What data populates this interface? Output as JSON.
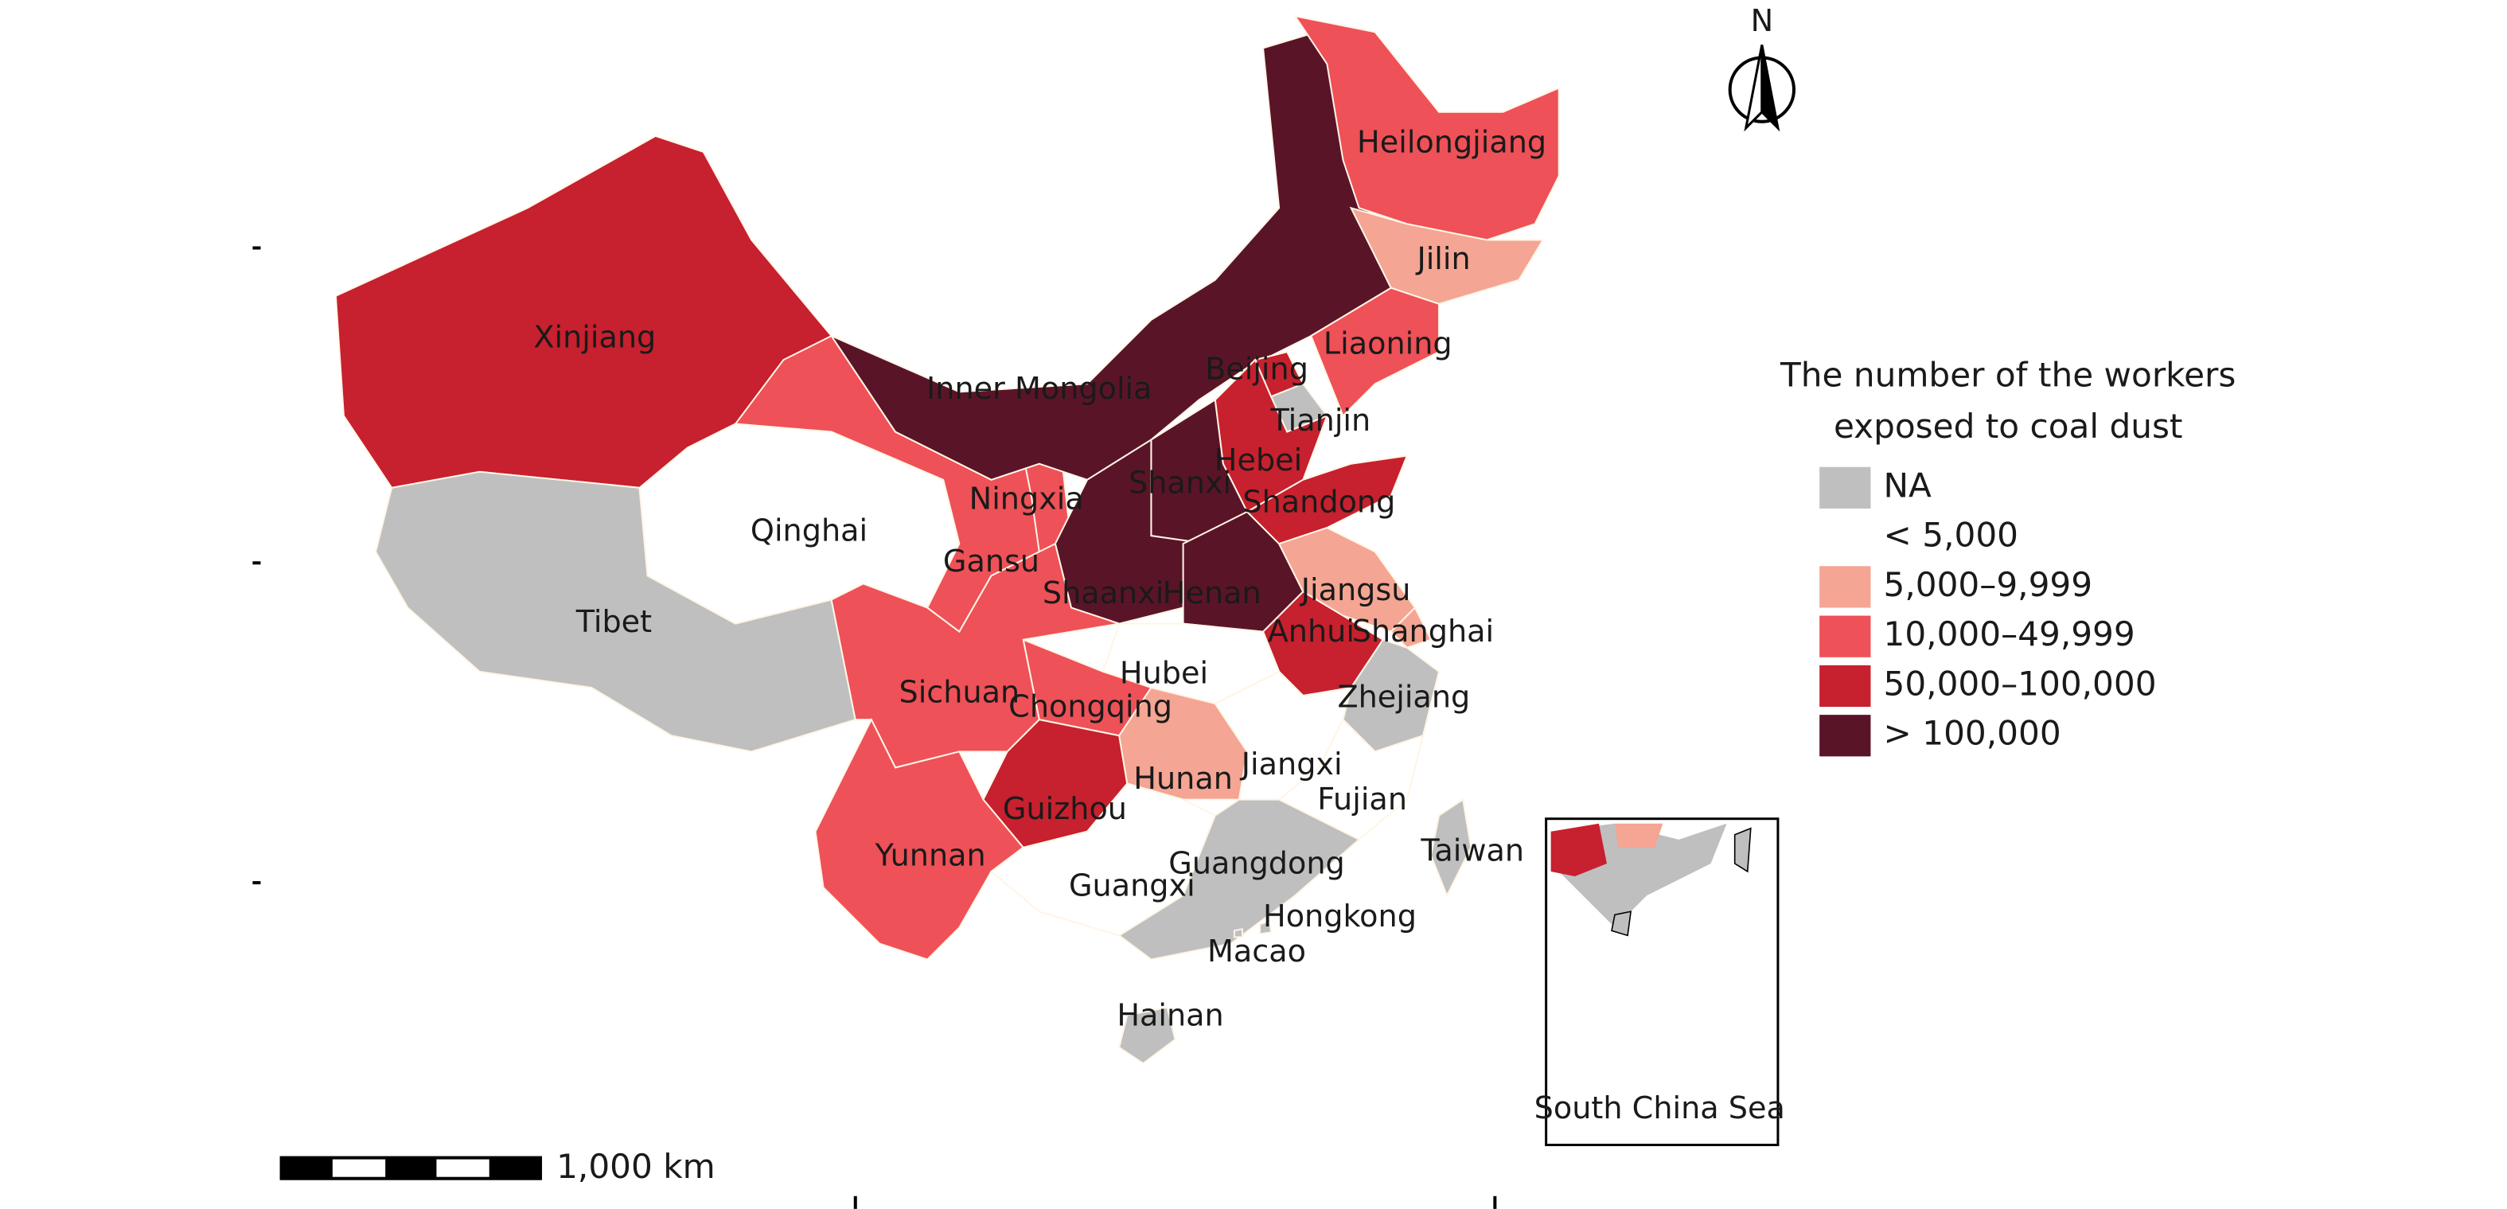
{
  "map": {
    "legend": {
      "title_lines": [
        "The number of the workers",
        "exposed to coal dust"
      ],
      "items": [
        {
          "label": "NA",
          "color": "#bfbfbf"
        },
        {
          "label": "< 5,000",
          "color": "#ffffff"
        },
        {
          "label": "5,000–9,999",
          "color": "#f4a593"
        },
        {
          "label": "10,000–49,999",
          "color": "#ee5157"
        },
        {
          "label": "50,000–100,000",
          "color": "#c7202e"
        },
        {
          "label": "> 100,000",
          "color": "#5a1428"
        }
      ]
    },
    "provinces": [
      {
        "name": "Xinjiang",
        "category": 4
      },
      {
        "name": "Tibet",
        "category": 0
      },
      {
        "name": "Qinghai",
        "category": 1
      },
      {
        "name": "Gansu",
        "category": 3
      },
      {
        "name": "Ningxia",
        "category": 3
      },
      {
        "name": "Inner Mongolia",
        "category": 5
      },
      {
        "name": "Heilongjiang",
        "category": 3
      },
      {
        "name": "Jilin",
        "category": 2
      },
      {
        "name": "Liaoning",
        "category": 3
      },
      {
        "name": "Beijing",
        "category": 4
      },
      {
        "name": "Tianjin",
        "category": 0
      },
      {
        "name": "Hebei",
        "category": 4
      },
      {
        "name": "Shanxi",
        "category": 5
      },
      {
        "name": "Shaanxi",
        "category": 5
      },
      {
        "name": "Henan",
        "category": 5
      },
      {
        "name": "Shandong",
        "category": 4
      },
      {
        "name": "Jiangsu",
        "category": 2
      },
      {
        "name": "Shanghai",
        "category": 2
      },
      {
        "name": "Anhui",
        "category": 4
      },
      {
        "name": "Zhejiang",
        "category": 0
      },
      {
        "name": "Hubei",
        "category": 1
      },
      {
        "name": "Chongqing",
        "category": 3
      },
      {
        "name": "Sichuan",
        "category": 3
      },
      {
        "name": "Guizhou",
        "category": 4
      },
      {
        "name": "Hunan",
        "category": 2
      },
      {
        "name": "Jiangxi",
        "category": 1
      },
      {
        "name": "Fujian",
        "category": 1
      },
      {
        "name": "Yunnan",
        "category": 3
      },
      {
        "name": "Guangxi",
        "category": 1
      },
      {
        "name": "Guangdong",
        "category": 0
      },
      {
        "name": "Taiwan",
        "category": 0
      },
      {
        "name": "Hainan",
        "category": 0
      },
      {
        "name": "Hongkong",
        "category": 0
      },
      {
        "name": "Macao",
        "category": 0
      }
    ],
    "north_label": "N",
    "scale_label": "1,000 km",
    "inset_label": "South China Sea"
  }
}
